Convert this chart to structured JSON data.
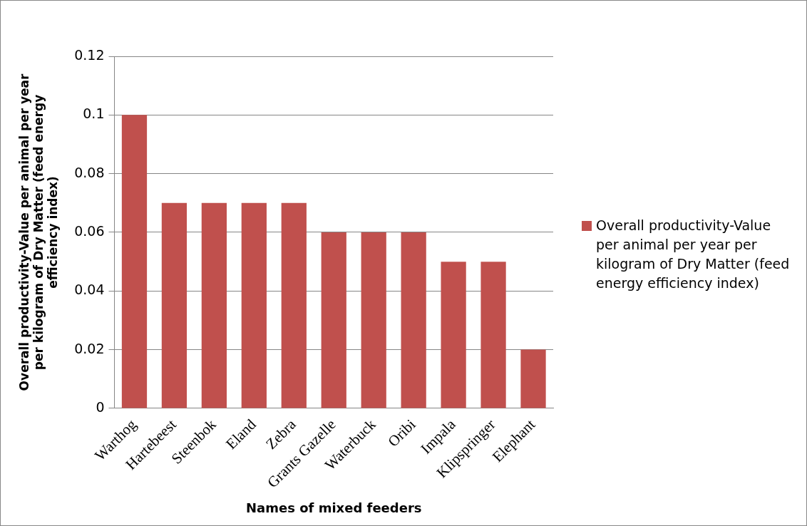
{
  "chart_data": {
    "type": "bar",
    "xlabel": "Names of mixed feeders",
    "ylabel": "Overall productivity-Value per animal per year per kilogram of Dry Matter (feed energy efficiency index)",
    "categories": [
      "Warthog",
      "Hartebeest",
      "Steenbok",
      "Eland",
      "Zebra",
      "Grants Gazelle",
      "Waterbuck",
      "Oribi",
      "Impala",
      "Klipspringer",
      "Elephant"
    ],
    "series": [
      {
        "name": "Overall productivity-Value per animal per year per kilogram of Dry Matter (feed energy efficiency index)",
        "color": "#c0504d",
        "values": [
          0.1,
          0.07,
          0.07,
          0.07,
          0.07,
          0.06,
          0.06,
          0.06,
          0.05,
          0.05,
          0.02
        ]
      }
    ],
    "ylim": [
      0,
      0.12
    ],
    "yticks": [
      0,
      0.02,
      0.04,
      0.06,
      0.08,
      0.1,
      0.12
    ],
    "grid": "y",
    "legend": "right"
  }
}
